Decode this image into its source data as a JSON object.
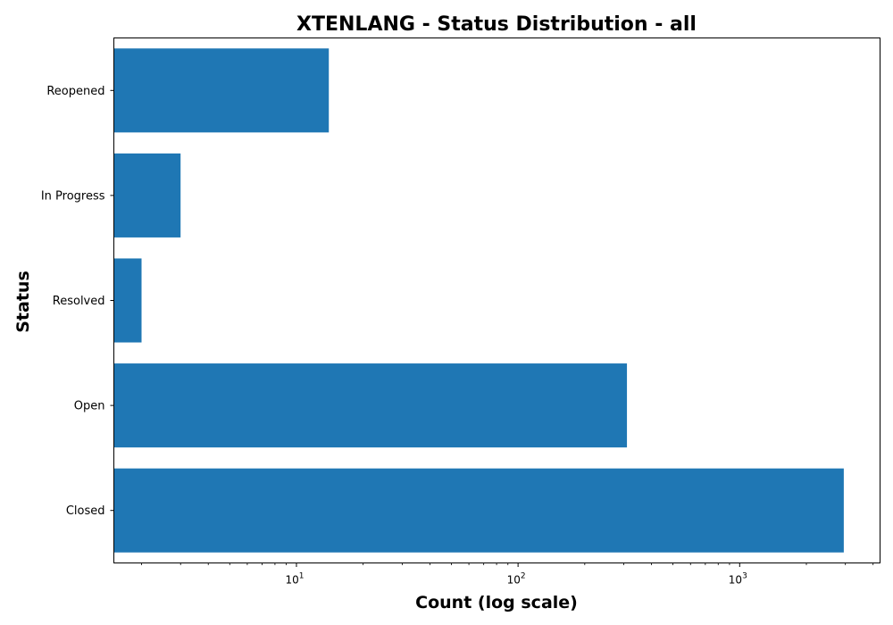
{
  "chart_data": {
    "type": "bar",
    "orientation": "horizontal",
    "title": "XTENLANG - Status Distribution - all",
    "xlabel": "Count (log scale)",
    "ylabel": "Status",
    "x_scale": "log",
    "xlim": [
      1.5,
      4300
    ],
    "categories": [
      "Reopened",
      "In Progress",
      "Resolved",
      "Open",
      "Closed"
    ],
    "values": [
      14,
      3,
      2,
      310,
      2950
    ],
    "x_ticks": [
      {
        "base": "10",
        "exp": "1",
        "value": 10
      },
      {
        "base": "10",
        "exp": "2",
        "value": 100
      },
      {
        "base": "10",
        "exp": "3",
        "value": 1000
      }
    ],
    "bar_color": "#1f77b4",
    "grid": false,
    "legend": "none"
  }
}
